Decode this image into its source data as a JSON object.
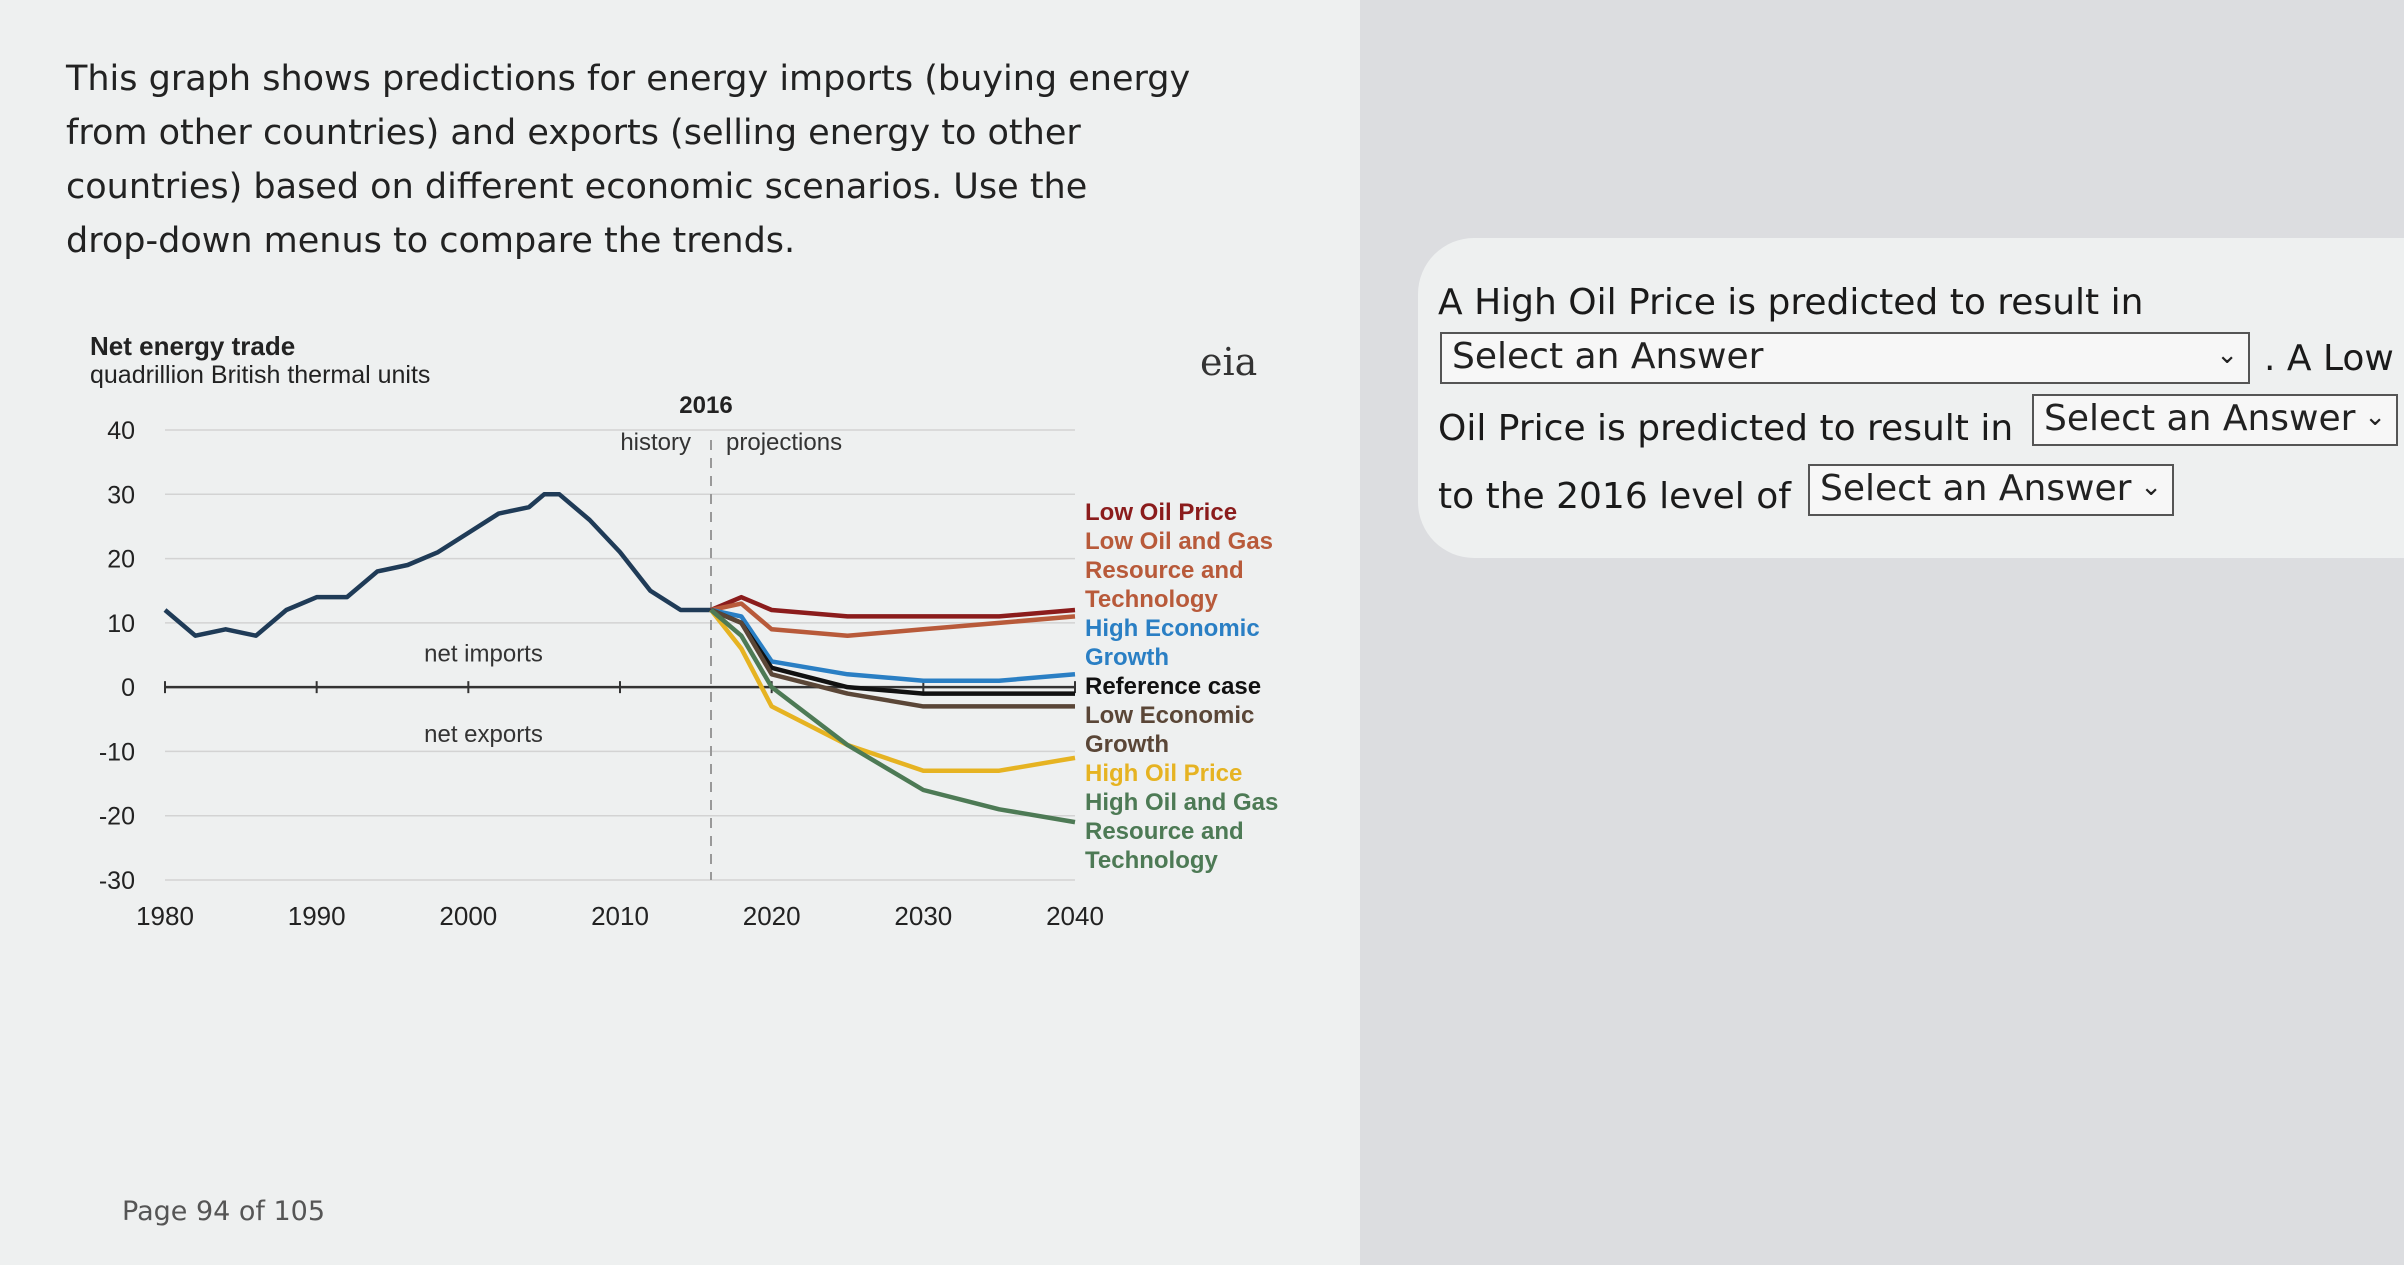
{
  "intro": {
    "line1": "This graph shows predictions for energy imports (buying energy",
    "line2": "from other countries) and exports (selling energy to other",
    "line3": "countries) based on different economic scenarios. Use the",
    "line4": "drop-down menus to compare the trends."
  },
  "logo": "eia",
  "page": "Page 94 of 105",
  "question": {
    "p1": "A High Oil Price is predicted to result in",
    "p2": ". A Low",
    "p3": "Oil Price is predicted to result in",
    "p4": "to the 2016 level of",
    "select_placeholder": "Select an Answer",
    "chevron": "chevron-down-icon"
  },
  "chart_data": {
    "type": "line",
    "title": "Net energy trade",
    "subtitle": "quadrillion British thermal units",
    "marker_label": "2016",
    "history_label": "history",
    "projections_label": "projections",
    "net_imports_label": "net imports",
    "net_exports_label": "net exports",
    "ylim": [
      -30,
      40
    ],
    "xlim": [
      1980,
      2040
    ],
    "yticks": [
      "40",
      "30",
      "20",
      "10",
      "0",
      "-10",
      "-20",
      "-30"
    ],
    "xticks": [
      "1980",
      "1990",
      "2000",
      "2010",
      "2020",
      "2030",
      "2040"
    ],
    "history": {
      "color": "#1f3b57",
      "x": [
        1980,
        1982,
        1984,
        1986,
        1988,
        1990,
        1992,
        1994,
        1996,
        1998,
        2000,
        2002,
        2004,
        2005,
        2006,
        2008,
        2010,
        2012,
        2014,
        2016
      ],
      "y": [
        12,
        8,
        9,
        8,
        12,
        14,
        14,
        18,
        19,
        21,
        24,
        27,
        28,
        30,
        30,
        26,
        21,
        15,
        12,
        12
      ]
    },
    "series": [
      {
        "name": "Low Oil Price",
        "color": "#8b1c1c",
        "x": [
          2016,
          2018,
          2020,
          2025,
          2030,
          2035,
          2040
        ],
        "y": [
          12,
          14,
          12,
          11,
          11,
          11,
          12
        ]
      },
      {
        "name": "Low Oil and Gas Resource and Technology",
        "color": "#b85a3a",
        "x": [
          2016,
          2018,
          2020,
          2025,
          2030,
          2035,
          2040
        ],
        "y": [
          12,
          13,
          9,
          8,
          9,
          10,
          11
        ]
      },
      {
        "name": "High Economic Growth",
        "color": "#2a7fc4",
        "x": [
          2016,
          2018,
          2020,
          2025,
          2030,
          2035,
          2040
        ],
        "y": [
          12,
          11,
          4,
          2,
          1,
          1,
          2
        ]
      },
      {
        "name": "Reference case",
        "color": "#111111",
        "x": [
          2016,
          2018,
          2020,
          2025,
          2030,
          2035,
          2040
        ],
        "y": [
          12,
          10,
          3,
          0,
          -1,
          -1,
          -1
        ]
      },
      {
        "name": "Low Economic Growth",
        "color": "#5a4637",
        "x": [
          2016,
          2018,
          2020,
          2025,
          2030,
          2035,
          2040
        ],
        "y": [
          12,
          10,
          2,
          -1,
          -3,
          -3,
          -3
        ]
      },
      {
        "name": "High Oil Price",
        "color": "#e6b322",
        "x": [
          2016,
          2018,
          2020,
          2025,
          2030,
          2035,
          2040
        ],
        "y": [
          12,
          6,
          -3,
          -9,
          -13,
          -13,
          -11
        ]
      },
      {
        "name": "High Oil and Gas Resource and Technology",
        "color": "#4d7a55",
        "x": [
          2016,
          2018,
          2020,
          2025,
          2030,
          2035,
          2040
        ],
        "y": [
          12,
          8,
          0,
          -9,
          -16,
          -19,
          -21
        ]
      }
    ],
    "legend_lines": [
      {
        "text": "Low Oil Price",
        "color": "#8b1c1c"
      },
      {
        "text": "Low Oil and Gas",
        "color": "#b85a3a"
      },
      {
        "text": "Resource and",
        "color": "#b85a3a"
      },
      {
        "text": "Technology",
        "color": "#b85a3a"
      },
      {
        "text": "High Economic",
        "color": "#2a7fc4"
      },
      {
        "text": "Growth",
        "color": "#2a7fc4"
      },
      {
        "text": "Reference case",
        "color": "#111111"
      },
      {
        "text": "Low Economic",
        "color": "#5a4637"
      },
      {
        "text": "Growth",
        "color": "#5a4637"
      },
      {
        "text": "High Oil Price",
        "color": "#e6b322"
      },
      {
        "text": "High Oil and Gas",
        "color": "#4d7a55"
      },
      {
        "text": "Resource and",
        "color": "#4d7a55"
      },
      {
        "text": "Technology",
        "color": "#4d7a55"
      }
    ]
  }
}
